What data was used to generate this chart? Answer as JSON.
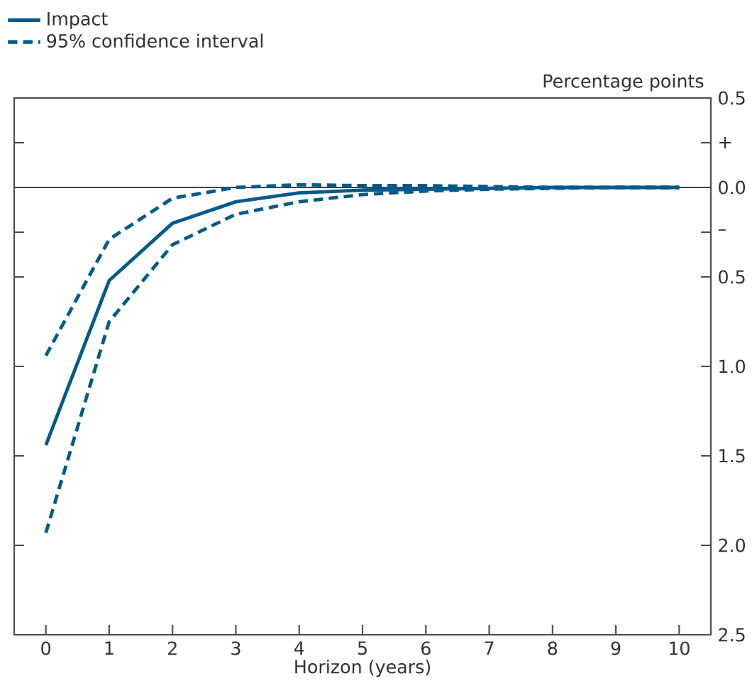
{
  "chart_data": {
    "type": "line",
    "xlabel": "Horizon (years)",
    "ylabel": "Percentage points",
    "x": [
      0,
      1,
      2,
      3,
      4,
      5,
      6,
      7,
      8,
      9,
      10
    ],
    "series": [
      {
        "name": "Impact",
        "color": "#005a8c",
        "line_style": "solid",
        "values": [
          -1.44,
          -0.52,
          -0.2,
          -0.08,
          -0.03,
          -0.015,
          -0.01,
          -0.005,
          0,
          0,
          0
        ]
      },
      {
        "name": "95% confidence interval",
        "color": "#005a8c",
        "line_style": "dashed",
        "values": [
          -0.94,
          -0.29,
          -0.06,
          0.0,
          0.015,
          0.01,
          0.01,
          0.005,
          0,
          0,
          0
        ]
      },
      {
        "color": "#005a8c",
        "line_style": "dashed",
        "values": [
          -1.93,
          -0.75,
          -0.32,
          -0.15,
          -0.08,
          -0.04,
          -0.02,
          -0.01,
          -0.005,
          0,
          0
        ]
      }
    ],
    "xlim": [
      -0.5,
      10.5
    ],
    "ylim": [
      -2.5,
      0.5
    ],
    "xticks": [
      0,
      1,
      2,
      3,
      4,
      5,
      6,
      7,
      8,
      9,
      10
    ],
    "yticks": [
      {
        "value": 0.5,
        "label": "0.5"
      },
      {
        "value": 0.25,
        "label": "+"
      },
      {
        "value": 0,
        "label": "0.0"
      },
      {
        "value": -0.25,
        "label": "–"
      },
      {
        "value": -0.5,
        "label": "0.5"
      },
      {
        "value": -1,
        "label": "1.0"
      },
      {
        "value": -1.5,
        "label": "1.5"
      },
      {
        "value": -2,
        "label": "2.0"
      },
      {
        "value": -2.5,
        "label": "2.5"
      }
    ],
    "ref_lines": [
      {
        "axis": "y",
        "value": 0,
        "color": "#404040"
      }
    ],
    "legend": "top left",
    "marker": "none",
    "grid": false
  }
}
